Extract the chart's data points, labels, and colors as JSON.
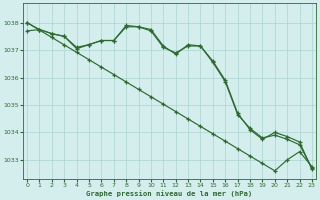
{
  "title": "Graphe pression niveau de la mer (hPa)",
  "background_color": "#d4eeed",
  "grid_color": "#aad4d0",
  "line_color": "#2d6b2d",
  "xlim": [
    -0.3,
    23.3
  ],
  "ylim": [
    1032.3,
    1038.7
  ],
  "yticks": [
    1033,
    1034,
    1035,
    1036,
    1037,
    1038
  ],
  "xticks": [
    0,
    1,
    2,
    3,
    4,
    5,
    6,
    7,
    8,
    9,
    10,
    11,
    12,
    13,
    14,
    15,
    16,
    17,
    18,
    19,
    20,
    21,
    22,
    23
  ],
  "series_straight": [
    1038.0,
    1037.73,
    1037.46,
    1037.19,
    1036.92,
    1036.65,
    1036.38,
    1036.11,
    1035.84,
    1035.57,
    1035.3,
    1035.03,
    1034.76,
    1034.49,
    1034.22,
    1033.95,
    1033.68,
    1033.41,
    1033.14,
    1032.87,
    1032.6,
    1033.0,
    1033.3,
    1032.75
  ],
  "series_wavy1": [
    1038.0,
    1037.75,
    1037.6,
    1037.5,
    1037.1,
    1037.2,
    1037.35,
    1037.35,
    1037.9,
    1037.85,
    1037.75,
    1037.15,
    1036.85,
    1037.2,
    1037.15,
    1036.55,
    1035.85,
    1034.65,
    1034.15,
    1033.8,
    1033.9,
    1033.75,
    1033.55,
    1032.7
  ],
  "series_wavy2": [
    1037.7,
    1037.75,
    1037.6,
    1037.5,
    1037.05,
    1037.2,
    1037.35,
    1037.35,
    1037.85,
    1037.85,
    1037.7,
    1037.1,
    1036.9,
    1037.15,
    1037.15,
    1036.6,
    1035.9,
    1034.7,
    1034.1,
    1033.75,
    1034.0,
    1033.85,
    1033.65,
    1032.65
  ]
}
